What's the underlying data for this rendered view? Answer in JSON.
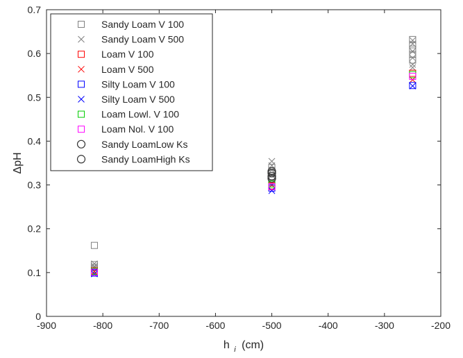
{
  "chart_data": {
    "type": "scatter",
    "xlabel": "h",
    "xlabel_subscript": "i",
    "xlabel_unit": "(cm)",
    "ylabel": "ΔpH",
    "xlim": [
      -900,
      -200
    ],
    "ylim": [
      0,
      0.7
    ],
    "x_ticks": [
      -900,
      -800,
      -700,
      -600,
      -500,
      -400,
      -300,
      -200
    ],
    "y_ticks": [
      0,
      0.1,
      0.2,
      0.3,
      0.4,
      0.5,
      0.6,
      0.7
    ],
    "grid": false,
    "legend_position": "top-left",
    "series": [
      {
        "name": "Sandy Loam V 100",
        "marker": "square",
        "color": "#808080",
        "points": [
          [
            -815,
            0.162
          ],
          [
            -815,
            0.118
          ],
          [
            -815,
            0.112
          ],
          [
            -815,
            0.108
          ],
          [
            -500,
            0.34
          ],
          [
            -500,
            0.328
          ],
          [
            -500,
            0.318
          ],
          [
            -500,
            0.305
          ],
          [
            -250,
            0.632
          ],
          [
            -250,
            0.62
          ],
          [
            -250,
            0.61
          ],
          [
            -250,
            0.598
          ],
          [
            -250,
            0.585
          ]
        ]
      },
      {
        "name": "Sandy Loam V 500",
        "marker": "x",
        "color": "#808080",
        "points": [
          [
            -815,
            0.12
          ],
          [
            -815,
            0.114
          ],
          [
            -815,
            0.11
          ],
          [
            -500,
            0.354
          ],
          [
            -500,
            0.344
          ],
          [
            -500,
            0.334
          ],
          [
            -500,
            0.322
          ],
          [
            -250,
            0.63
          ],
          [
            -250,
            0.622
          ],
          [
            -250,
            0.605
          ],
          [
            -250,
            0.59
          ],
          [
            -250,
            0.575
          ],
          [
            -250,
            0.568
          ]
        ]
      },
      {
        "name": "Loam V 100",
        "marker": "square",
        "color": "#ff0000",
        "points": [
          [
            -815,
            0.104
          ],
          [
            -500,
            0.298
          ],
          [
            -250,
            0.555
          ]
        ]
      },
      {
        "name": "Loam V 500",
        "marker": "x",
        "color": "#ff0000",
        "points": [
          [
            -815,
            0.102
          ],
          [
            -500,
            0.3
          ],
          [
            -250,
            0.54
          ]
        ]
      },
      {
        "name": "Silty Loam V 100",
        "marker": "square",
        "color": "#0000ff",
        "points": [
          [
            -815,
            0.099
          ],
          [
            -500,
            0.293
          ],
          [
            -250,
            0.527
          ]
        ]
      },
      {
        "name": "Silty Loam V 500",
        "marker": "x",
        "color": "#0000ff",
        "points": [
          [
            -815,
            0.097
          ],
          [
            -500,
            0.287
          ],
          [
            -250,
            0.526
          ]
        ]
      },
      {
        "name": "Loam Lowl. V 100",
        "marker": "square",
        "color": "#00cc00",
        "points": [
          [
            -815,
            0.103
          ],
          [
            -500,
            0.302
          ],
          [
            -250,
            0.552
          ]
        ]
      },
      {
        "name": "Loam Nol. V 100",
        "marker": "square",
        "color": "#ff00ff",
        "points": [
          [
            -815,
            0.101
          ],
          [
            -500,
            0.296
          ],
          [
            -250,
            0.548
          ]
        ]
      },
      {
        "name": "Sandy LoamLow Ks",
        "marker": "circle",
        "color": "#333333",
        "points": [
          [
            -500,
            0.331
          ],
          [
            -500,
            0.32
          ]
        ]
      },
      {
        "name": "Sandy LoamHigh Ks",
        "marker": "circle",
        "color": "#333333",
        "points": [
          [
            -500,
            0.327
          ],
          [
            -500,
            0.315
          ]
        ]
      }
    ]
  }
}
